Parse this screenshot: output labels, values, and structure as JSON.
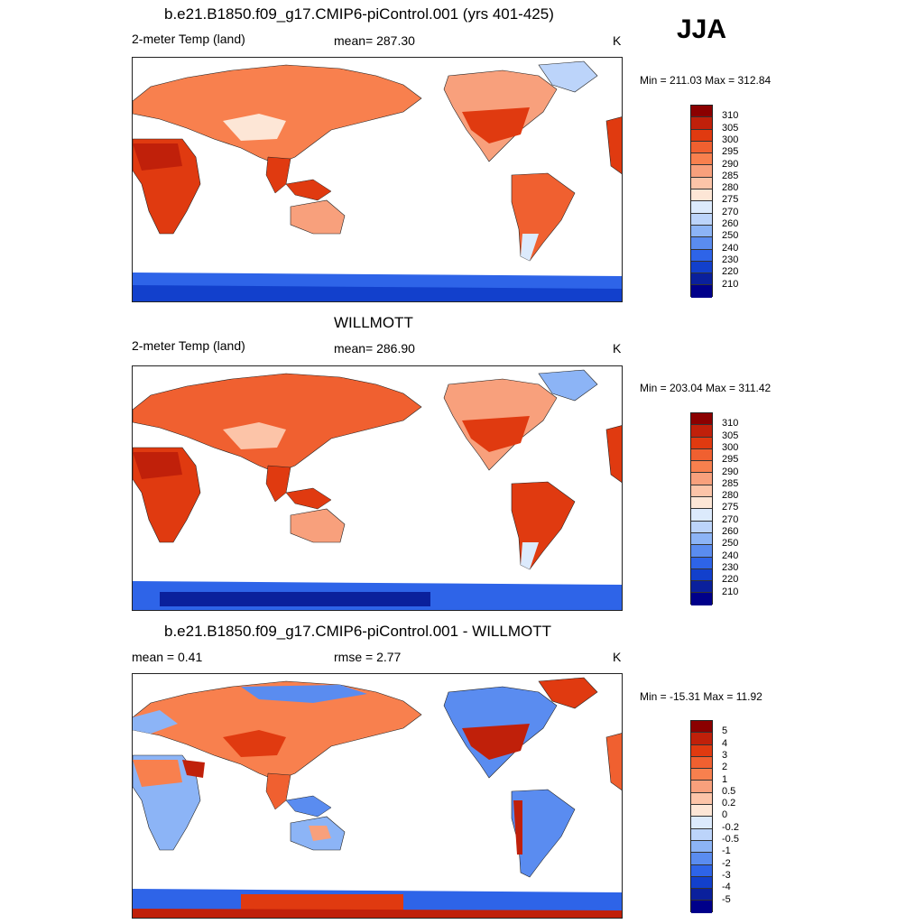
{
  "season": "JJA",
  "panels": [
    {
      "title": "b.e21.B1850.f09_g17.CMIP6-piControl.001 (yrs 401-425)",
      "left_label": "2-meter Temp (land)",
      "center_label": "mean= 287.30",
      "units": "K",
      "minmax": "Min = 211.03 Max = 312.84"
    },
    {
      "title": "WILLMOTT",
      "left_label": "2-meter Temp (land)",
      "center_label": "mean= 286.90",
      "units": "K",
      "minmax": "Min = 203.04 Max = 311.42"
    },
    {
      "title": "b.e21.B1850.f09_g17.CMIP6-piControl.001 - WILLMOTT",
      "left_label": "mean =   0.41",
      "center_label": "rmse =   2.77",
      "units": "K",
      "minmax": "Min = -15.31 Max =  11.92"
    }
  ],
  "colorbars": {
    "temperature": {
      "labels": [
        "310",
        "305",
        "300",
        "295",
        "290",
        "285",
        "280",
        "275",
        "270",
        "260",
        "250",
        "240",
        "230",
        "220",
        "210"
      ],
      "colors": [
        "#8b0000",
        "#c0200a",
        "#e03a10",
        "#f06030",
        "#f8804e",
        "#f8a07c",
        "#fcc4a8",
        "#fde6d6",
        "#dceafc",
        "#bcd4fa",
        "#8cb4f6",
        "#5a8cf0",
        "#2e64e8",
        "#1240cc",
        "#0a209c",
        "#00008a"
      ]
    },
    "difference": {
      "labels": [
        "5",
        "4",
        "3",
        "2",
        "1",
        "0.5",
        "0.2",
        "0",
        "-0.2",
        "-0.5",
        "-1",
        "-2",
        "-3",
        "-4",
        "-5"
      ],
      "colors": [
        "#8b0000",
        "#c0200a",
        "#e03a10",
        "#f06030",
        "#f8804e",
        "#f8a07c",
        "#fcc4a8",
        "#fde6d6",
        "#dceafc",
        "#bcd4fa",
        "#8cb4f6",
        "#5a8cf0",
        "#2e64e8",
        "#1240cc",
        "#0a209c",
        "#00008a"
      ]
    }
  },
  "chart_data": [
    {
      "type": "heatmap",
      "title": "b.e21.B1850.f09_g17.CMIP6-piControl.001 (yrs 401-425)",
      "variable": "2-meter Temp (land)",
      "units": "K",
      "mean": 287.3,
      "min": 211.03,
      "max": 312.84,
      "levels": [
        210,
        220,
        230,
        240,
        250,
        260,
        270,
        275,
        280,
        285,
        290,
        295,
        300,
        305,
        310
      ]
    },
    {
      "type": "heatmap",
      "title": "WILLMOTT",
      "variable": "2-meter Temp (land)",
      "units": "K",
      "mean": 286.9,
      "min": 203.04,
      "max": 311.42,
      "levels": [
        210,
        220,
        230,
        240,
        250,
        260,
        270,
        275,
        280,
        285,
        290,
        295,
        300,
        305,
        310
      ]
    },
    {
      "type": "heatmap",
      "title": "b.e21.B1850.f09_g17.CMIP6-piControl.001 - WILLMOTT",
      "units": "K",
      "mean": 0.41,
      "rmse": 2.77,
      "min": -15.31,
      "max": 11.92,
      "levels": [
        -5,
        -4,
        -3,
        -2,
        -1,
        -0.5,
        -0.2,
        0,
        0.2,
        0.5,
        1,
        2,
        3,
        4,
        5
      ]
    }
  ]
}
